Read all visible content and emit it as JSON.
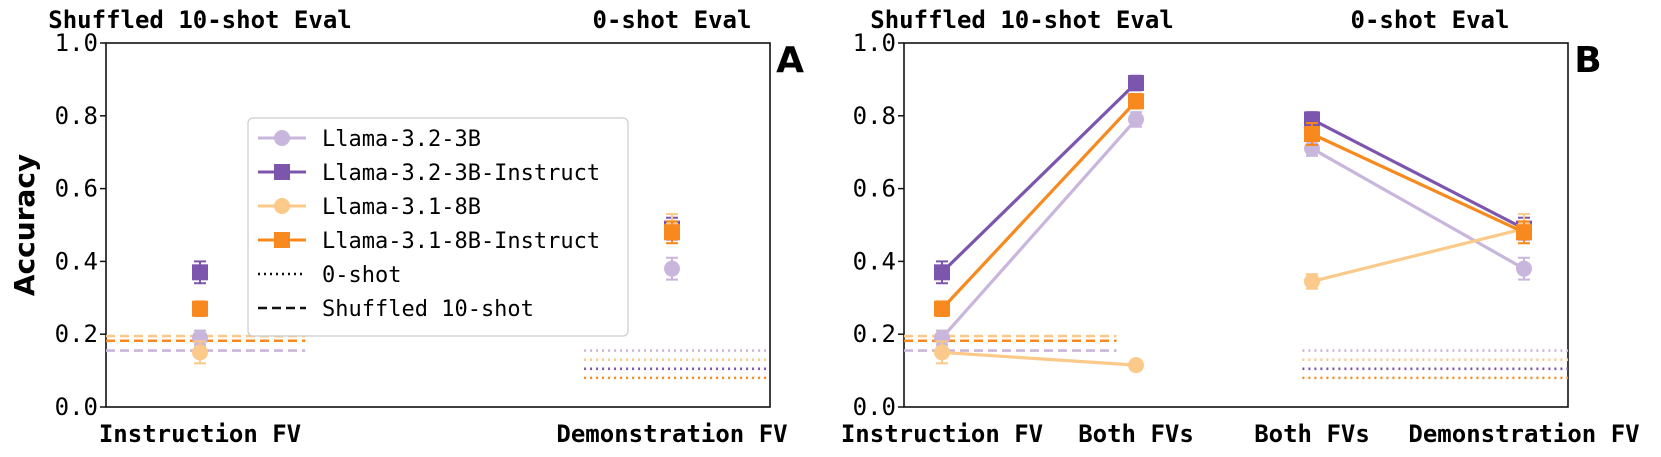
{
  "colors": {
    "llama32_base": "#c9b6dc",
    "llama32_instruct": "#7c56ad",
    "llama31_base": "#fbc989",
    "llama31_instruct": "#f7891e",
    "axis": "#111111"
  },
  "legend": {
    "entries": [
      "Llama-3.2-3B",
      "Llama-3.2-3B-Instruct",
      "Llama-3.1-8B",
      "Llama-3.1-8B-Instruct",
      "0-shot",
      "Shuffled 10-shot"
    ]
  },
  "chart_data": [
    {
      "type": "scatter",
      "panel_label": "A",
      "ylabel": "Accuracy",
      "ylim": [
        0,
        1
      ],
      "yticks": [
        "0.0",
        "0.2",
        "0.4",
        "0.6",
        "0.8",
        "1.0"
      ],
      "group_titles": [
        "Shuffled 10-shot Eval",
        "0-shot Eval"
      ],
      "categories": [
        "Instruction FV",
        "Demonstration FV"
      ],
      "series": [
        {
          "name": "Llama-3.2-3B",
          "color_key": "llama32_base",
          "marker": "circle",
          "points": [
            {
              "x": 0,
              "y": 0.19,
              "err": 0.02
            },
            {
              "x": 1,
              "y": 0.38,
              "err": 0.03
            }
          ]
        },
        {
          "name": "Llama-3.2-3B-Instruct",
          "color_key": "llama32_instruct",
          "marker": "square",
          "points": [
            {
              "x": 0,
              "y": 0.37,
              "err": 0.03
            },
            {
              "x": 1,
              "y": 0.49,
              "err": 0.03
            }
          ]
        },
        {
          "name": "Llama-3.1-8B",
          "color_key": "llama31_base",
          "marker": "circle",
          "points": [
            {
              "x": 0,
              "y": 0.15,
              "err": 0.03
            },
            {
              "x": 1,
              "y": 0.49,
              "err": 0.04
            }
          ]
        },
        {
          "name": "Llama-3.1-8B-Instruct",
          "color_key": "llama31_instruct",
          "marker": "square",
          "points": [
            {
              "x": 0,
              "y": 0.27,
              "err": 0.02
            },
            {
              "x": 1,
              "y": 0.48,
              "err": 0.03
            }
          ]
        }
      ],
      "baselines": {
        "shuffled_10shot": {
          "style": "dashed",
          "x_range": [
            0,
            0.3
          ],
          "values": {
            "llama32_base": 0.155,
            "llama32_instruct": 0.182,
            "llama31_base": 0.195,
            "llama31_instruct": 0.182
          }
        },
        "zero_shot": {
          "style": "dotted",
          "x_range": [
            0.72,
            1.0
          ],
          "values": {
            "llama32_base": 0.155,
            "llama32_instruct": 0.105,
            "llama31_base": 0.13,
            "llama31_instruct": 0.08
          }
        }
      }
    },
    {
      "type": "line",
      "panel_label": "B",
      "ylim": [
        0,
        1
      ],
      "yticks": [
        "0.0",
        "0.2",
        "0.4",
        "0.6",
        "0.8",
        "1.0"
      ],
      "group_titles": [
        "Shuffled 10-shot Eval",
        "0-shot Eval"
      ],
      "categories": [
        "Instruction FV",
        "Both FVs",
        "Both FVs",
        "Demonstration FV"
      ],
      "series": [
        {
          "name": "Llama-3.2-3B",
          "color_key": "llama32_base",
          "marker": "circle",
          "segments": [
            [
              {
                "x": 0,
                "y": 0.19,
                "err": 0.02
              },
              {
                "x": 1,
                "y": 0.79,
                "err": 0.02
              }
            ],
            [
              {
                "x": 2,
                "y": 0.71,
                "err": 0.02
              },
              {
                "x": 3,
                "y": 0.38,
                "err": 0.03
              }
            ]
          ]
        },
        {
          "name": "Llama-3.2-3B-Instruct",
          "color_key": "llama32_instruct",
          "marker": "square",
          "segments": [
            [
              {
                "x": 0,
                "y": 0.37,
                "err": 0.03
              },
              {
                "x": 1,
                "y": 0.89,
                "err": 0.02
              }
            ],
            [
              {
                "x": 2,
                "y": 0.79,
                "err": 0.02
              },
              {
                "x": 3,
                "y": 0.49,
                "err": 0.03
              }
            ]
          ]
        },
        {
          "name": "Llama-3.1-8B",
          "color_key": "llama31_base",
          "marker": "circle",
          "segments": [
            [
              {
                "x": 0,
                "y": 0.15,
                "err": 0.03
              },
              {
                "x": 1,
                "y": 0.115,
                "err": 0.01
              }
            ],
            [
              {
                "x": 2,
                "y": 0.345,
                "err": 0.02
              },
              {
                "x": 3,
                "y": 0.49,
                "err": 0.04
              }
            ]
          ]
        },
        {
          "name": "Llama-3.1-8B-Instruct",
          "color_key": "llama31_instruct",
          "marker": "square",
          "segments": [
            [
              {
                "x": 0,
                "y": 0.27,
                "err": 0.02
              },
              {
                "x": 1,
                "y": 0.84,
                "err": 0.02
              }
            ],
            [
              {
                "x": 2,
                "y": 0.75,
                "err": 0.03
              },
              {
                "x": 3,
                "y": 0.48,
                "err": 0.03
              }
            ]
          ]
        }
      ],
      "baselines": {
        "shuffled_10shot": {
          "style": "dashed",
          "x_range": [
            0,
            0.32
          ],
          "values": {
            "llama32_base": 0.155,
            "llama32_instruct": 0.182,
            "llama31_base": 0.195,
            "llama31_instruct": 0.182
          }
        },
        "zero_shot": {
          "style": "dotted",
          "x_range": [
            0.6,
            1.0
          ],
          "values": {
            "llama32_base": 0.155,
            "llama32_instruct": 0.105,
            "llama31_base": 0.13,
            "llama31_instruct": 0.08
          }
        }
      }
    }
  ]
}
